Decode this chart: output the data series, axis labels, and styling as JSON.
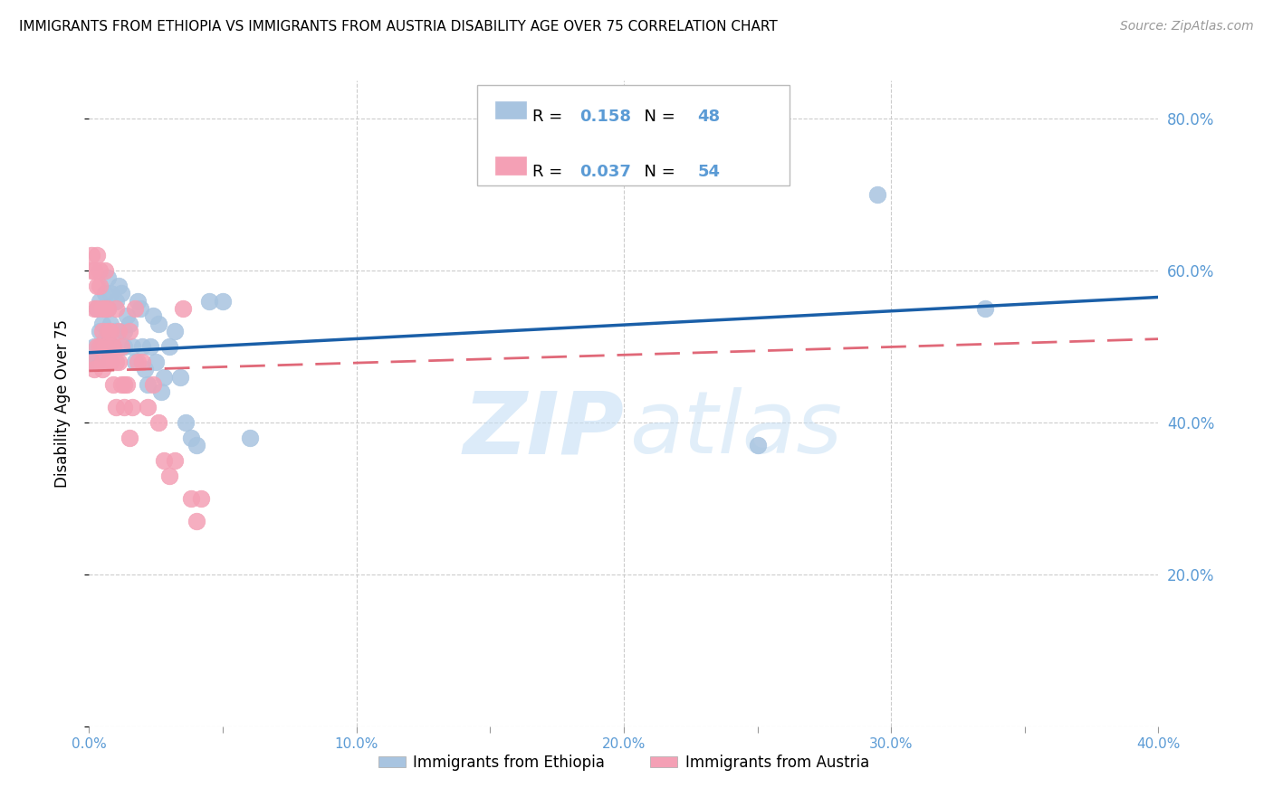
{
  "title": "IMMIGRANTS FROM ETHIOPIA VS IMMIGRANTS FROM AUSTRIA DISABILITY AGE OVER 75 CORRELATION CHART",
  "source": "Source: ZipAtlas.com",
  "ylabel": "Disability Age Over 75",
  "right_ytick_labels": [
    "",
    "20.0%",
    "40.0%",
    "60.0%",
    "80.0%"
  ],
  "right_yticks": [
    0.0,
    0.2,
    0.4,
    0.6,
    0.8
  ],
  "xlim": [
    0.0,
    0.4
  ],
  "ylim": [
    0.0,
    0.85
  ],
  "xtick_labels": [
    "0.0%",
    "",
    "10.0%",
    "",
    "20.0%",
    "",
    "30.0%",
    "",
    "40.0%"
  ],
  "xticks": [
    0.0,
    0.05,
    0.1,
    0.15,
    0.2,
    0.25,
    0.3,
    0.35,
    0.4
  ],
  "ethiopia_R": 0.158,
  "ethiopia_N": 48,
  "austria_R": 0.037,
  "austria_N": 54,
  "ethiopia_color": "#a8c4e0",
  "austria_color": "#f4a0b5",
  "ethiopia_line_color": "#1a5fa8",
  "austria_line_color": "#e06878",
  "grid_color": "#cccccc",
  "title_fontsize": 11,
  "axis_label_color": "#5b9bd5",
  "legend_value_color": "#5b9bd5",
  "ethiopia_x": [
    0.001,
    0.002,
    0.003,
    0.003,
    0.004,
    0.004,
    0.005,
    0.005,
    0.006,
    0.006,
    0.007,
    0.007,
    0.008,
    0.008,
    0.009,
    0.01,
    0.01,
    0.011,
    0.012,
    0.013,
    0.013,
    0.014,
    0.015,
    0.016,
    0.017,
    0.018,
    0.019,
    0.02,
    0.021,
    0.022,
    0.023,
    0.024,
    0.025,
    0.026,
    0.027,
    0.028,
    0.03,
    0.032,
    0.034,
    0.036,
    0.038,
    0.04,
    0.045,
    0.05,
    0.06,
    0.25,
    0.295,
    0.335
  ],
  "ethiopia_y": [
    0.48,
    0.5,
    0.55,
    0.48,
    0.56,
    0.52,
    0.5,
    0.53,
    0.51,
    0.57,
    0.55,
    0.59,
    0.57,
    0.53,
    0.5,
    0.56,
    0.52,
    0.58,
    0.57,
    0.52,
    0.5,
    0.54,
    0.53,
    0.5,
    0.48,
    0.56,
    0.55,
    0.5,
    0.47,
    0.45,
    0.5,
    0.54,
    0.48,
    0.53,
    0.44,
    0.46,
    0.5,
    0.52,
    0.46,
    0.4,
    0.38,
    0.37,
    0.56,
    0.56,
    0.38,
    0.37,
    0.7,
    0.55
  ],
  "austria_x": [
    0.001,
    0.001,
    0.001,
    0.002,
    0.002,
    0.002,
    0.003,
    0.003,
    0.003,
    0.003,
    0.004,
    0.004,
    0.004,
    0.005,
    0.005,
    0.005,
    0.005,
    0.006,
    0.006,
    0.006,
    0.007,
    0.007,
    0.007,
    0.008,
    0.008,
    0.008,
    0.009,
    0.009,
    0.01,
    0.01,
    0.01,
    0.011,
    0.011,
    0.012,
    0.012,
    0.013,
    0.013,
    0.014,
    0.015,
    0.015,
    0.016,
    0.017,
    0.018,
    0.02,
    0.022,
    0.024,
    0.026,
    0.028,
    0.03,
    0.032,
    0.035,
    0.038,
    0.04,
    0.042
  ],
  "austria_y": [
    0.6,
    0.62,
    0.48,
    0.6,
    0.55,
    0.47,
    0.55,
    0.58,
    0.62,
    0.5,
    0.58,
    0.6,
    0.5,
    0.55,
    0.48,
    0.52,
    0.47,
    0.6,
    0.55,
    0.5,
    0.55,
    0.48,
    0.52,
    0.48,
    0.52,
    0.5,
    0.5,
    0.45,
    0.55,
    0.42,
    0.48,
    0.48,
    0.52,
    0.45,
    0.5,
    0.42,
    0.45,
    0.45,
    0.52,
    0.38,
    0.42,
    0.55,
    0.48,
    0.48,
    0.42,
    0.45,
    0.4,
    0.35,
    0.33,
    0.35,
    0.55,
    0.3,
    0.27,
    0.3
  ]
}
